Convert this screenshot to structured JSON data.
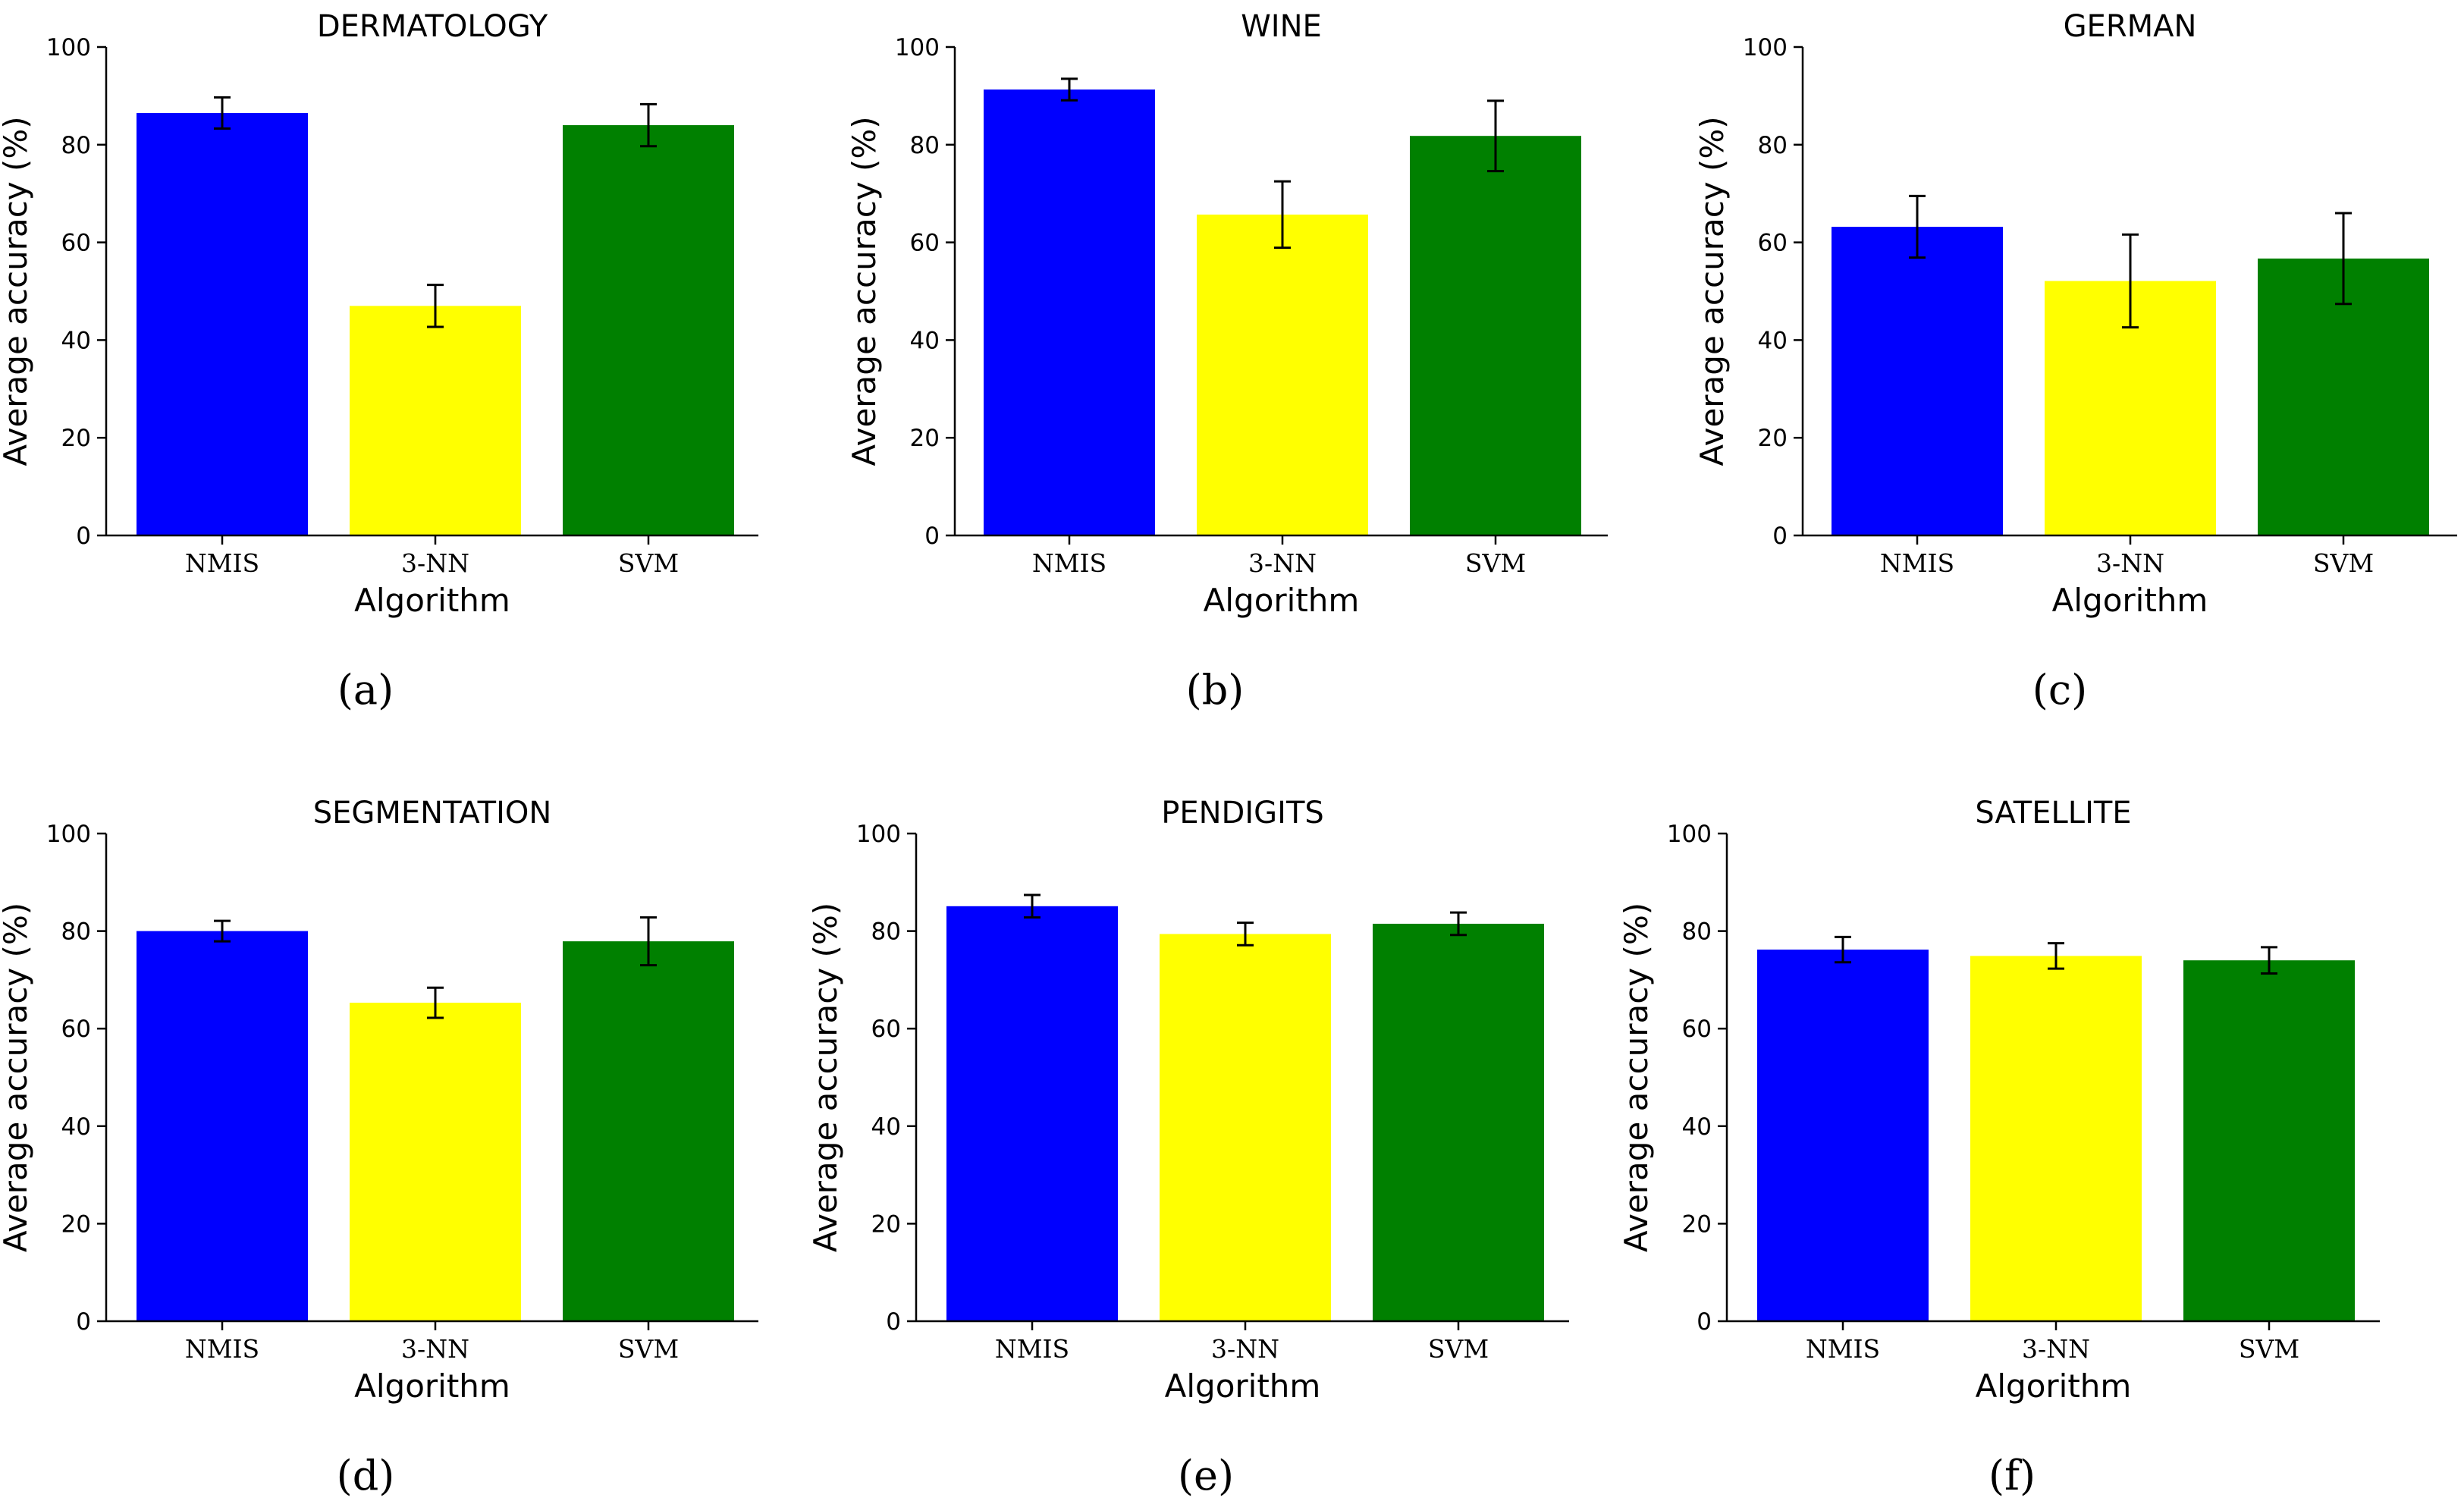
{
  "chart_data": [
    {
      "type": "bar",
      "title": "DERMATOLOGY",
      "panel_label": "(a)",
      "xlabel": "Algorithm",
      "ylabel": "Average accuracy (%)",
      "ylim": [
        0,
        100
      ],
      "yticks": [
        "0",
        "20",
        "40",
        "60",
        "80",
        "100"
      ],
      "categories": [
        "NMIS",
        "3-NN",
        "SVM"
      ],
      "values": [
        86.5,
        47,
        84
      ],
      "errors": [
        3.2,
        4.3,
        4.3
      ],
      "colors": [
        "#0000ff",
        "#ffff00",
        "#008000"
      ]
    },
    {
      "type": "bar",
      "title": "WINE",
      "panel_label": "(b)",
      "xlabel": "Algorithm",
      "ylabel": "Average accuracy (%)",
      "ylim": [
        0,
        100
      ],
      "yticks": [
        "0",
        "20",
        "40",
        "60",
        "80",
        "100"
      ],
      "categories": [
        "NMIS",
        "3-NN",
        "SVM"
      ],
      "values": [
        91.3,
        65.7,
        81.8
      ],
      "errors": [
        2.2,
        6.8,
        7.2
      ],
      "colors": [
        "#0000ff",
        "#ffff00",
        "#008000"
      ]
    },
    {
      "type": "bar",
      "title": "GERMAN",
      "panel_label": "(c)",
      "xlabel": "Algorithm",
      "ylabel": "Average accuracy (%)",
      "ylim": [
        0,
        100
      ],
      "yticks": [
        "0",
        "20",
        "40",
        "60",
        "80",
        "100"
      ],
      "categories": [
        "NMIS",
        "3-NN",
        "SVM"
      ],
      "values": [
        63.2,
        52.1,
        56.7
      ],
      "errors": [
        6.3,
        9.5,
        9.3
      ],
      "colors": [
        "#0000ff",
        "#ffff00",
        "#008000"
      ]
    },
    {
      "type": "bar",
      "title": "SEGMENTATION",
      "panel_label": "(d)",
      "xlabel": "Algorithm",
      "ylabel": "Average accuracy (%)",
      "ylim": [
        0,
        100
      ],
      "yticks": [
        "0",
        "20",
        "40",
        "60",
        "80",
        "100"
      ],
      "categories": [
        "NMIS",
        "3-NN",
        "SVM"
      ],
      "values": [
        80,
        65.3,
        77.9
      ],
      "errors": [
        2.1,
        3.1,
        4.9
      ],
      "colors": [
        "#0000ff",
        "#ffff00",
        "#008000"
      ]
    },
    {
      "type": "bar",
      "title": "PENDIGITS",
      "panel_label": "(e)",
      "xlabel": "Algorithm",
      "ylabel": "Average accuracy (%)",
      "ylim": [
        0,
        100
      ],
      "yticks": [
        "0",
        "20",
        "40",
        "60",
        "80",
        "100"
      ],
      "categories": [
        "NMIS",
        "3-NN",
        "SVM"
      ],
      "values": [
        85.1,
        79.4,
        81.5
      ],
      "errors": [
        2.3,
        2.3,
        2.3
      ],
      "colors": [
        "#0000ff",
        "#ffff00",
        "#008000"
      ]
    },
    {
      "type": "bar",
      "title": "SATELLITE",
      "panel_label": "(f)",
      "xlabel": "Algorithm",
      "ylabel": "Average accuracy (%)",
      "ylim": [
        0,
        100
      ],
      "yticks": [
        "0",
        "20",
        "40",
        "60",
        "80",
        "100"
      ],
      "categories": [
        "NMIS",
        "3-NN",
        "SVM"
      ],
      "values": [
        76.2,
        74.9,
        74
      ],
      "errors": [
        2.6,
        2.6,
        2.7
      ],
      "colors": [
        "#0000ff",
        "#ffff00",
        "#008000"
      ]
    }
  ]
}
